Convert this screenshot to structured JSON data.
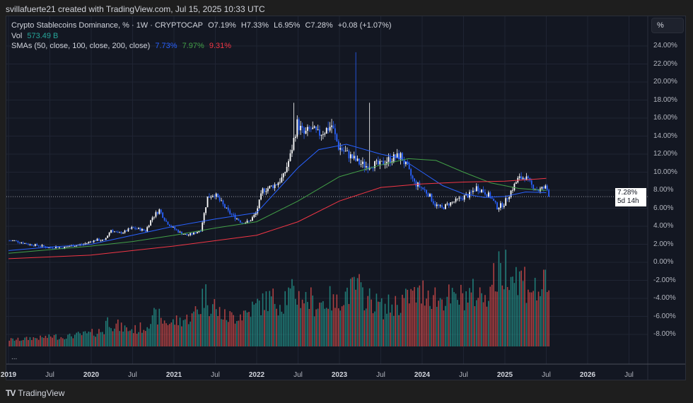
{
  "credit": "svillafuerte21 created with TradingView.com, Jul 15, 2025 10:33 UTC",
  "legend": {
    "title": "Crypto Stablecoins Dominance, % · 1W · CRYPTOCAP",
    "open": "O7.19%",
    "high": "H7.33%",
    "low": "L6.95%",
    "close": "C7.28%",
    "change": "+0.08 (+1.07%)",
    "vol_label": "Vol",
    "vol_value": "573.49 B",
    "sma_label": "SMAs (50, close, 100, close, 200, close)",
    "sma50": "7.73%",
    "sma100": "7.97%",
    "sma200": "9.31%"
  },
  "unit_button": "%",
  "y_axis_labels": [
    "24.00%",
    "22.00%",
    "20.00%",
    "18.00%",
    "16.00%",
    "14.00%",
    "12.00%",
    "10.00%",
    "8.00%",
    "6.00%",
    "4.00%",
    "2.00%",
    "0.00%",
    "-2.00%",
    "-4.00%",
    "-6.00%",
    "-8.00%"
  ],
  "price_tag": {
    "price": "7.28%",
    "countdown": "5d 14h"
  },
  "x_axis_labels": [
    {
      "t": "2019",
      "year": true,
      "d": 2019
    },
    {
      "t": "Jul",
      "d": 2019.5
    },
    {
      "t": "2020",
      "year": true,
      "d": 2020
    },
    {
      "t": "Jul",
      "d": 2020.5
    },
    {
      "t": "2021",
      "year": true,
      "d": 2021
    },
    {
      "t": "Jul",
      "d": 2021.5
    },
    {
      "t": "2022",
      "year": true,
      "d": 2022
    },
    {
      "t": "Jul",
      "d": 2022.5
    },
    {
      "t": "2023",
      "year": true,
      "d": 2023
    },
    {
      "t": "Jul",
      "d": 2023.5
    },
    {
      "t": "2024",
      "year": true,
      "d": 2024
    },
    {
      "t": "Jul",
      "d": 2024.5
    },
    {
      "t": "2025",
      "year": true,
      "d": 2025
    },
    {
      "t": "Jul",
      "d": 2025.5
    },
    {
      "t": "2026",
      "year": true,
      "d": 2026
    },
    {
      "t": "Jul",
      "d": 2026.5
    }
  ],
  "more_label": "...",
  "brand": "TradingView",
  "colors": {
    "up": "#26a69a",
    "down": "#ef5350",
    "candle_up": "#ffffff",
    "candle_down": "#2962ff",
    "sma50": "#2962ff",
    "sma100": "#43a047",
    "sma200": "#f23645",
    "vol_text": "#26a69a"
  },
  "chart_data": {
    "type": "candlestick",
    "interval": "1W",
    "start_month": "2019-01",
    "monthly_close": [
      2.4,
      2.2,
      2.0,
      1.9,
      1.8,
      1.6,
      1.7,
      1.6,
      1.8,
      1.9,
      2.0,
      2.3,
      2.5,
      2.4,
      3.6,
      3.2,
      3.4,
      3.8,
      3.7,
      3.5,
      5.0,
      5.8,
      4.5,
      3.8,
      3.3,
      3.0,
      3.2,
      3.6,
      7.2,
      7.6,
      6.6,
      5.6,
      5.0,
      4.4,
      4.5,
      5.4,
      8.0,
      8.3,
      8.7,
      9.5,
      11.8,
      15.4,
      14.2,
      14.8,
      14.2,
      14.6,
      15.2,
      12.8,
      12.2,
      11.6,
      11.0,
      10.7,
      10.9,
      10.8,
      11.3,
      11.6,
      11.8,
      10.4,
      8.8,
      8.3,
      7.6,
      6.4,
      6.0,
      6.5,
      6.8,
      7.2,
      7.5,
      8.3,
      7.9,
      7.3,
      6.1,
      6.5,
      7.9,
      9.2,
      9.5,
      8.5,
      8.0,
      8.3,
      7.28
    ],
    "spike_highs": [
      {
        "month": "2022-06",
        "high": 17.7
      },
      {
        "month": "2023-03",
        "high": 23.3
      },
      {
        "month": "2023-05",
        "high": 17.7
      }
    ],
    "monthly_volume_relative": [
      8,
      8,
      9,
      10,
      10,
      11,
      12,
      11,
      12,
      13,
      14,
      15,
      16,
      18,
      30,
      25,
      22,
      20,
      20,
      22,
      30,
      35,
      30,
      28,
      30,
      32,
      35,
      45,
      60,
      50,
      40,
      35,
      35,
      38,
      40,
      45,
      50,
      55,
      55,
      52,
      60,
      62,
      58,
      55,
      50,
      52,
      55,
      50,
      60,
      65,
      70,
      60,
      55,
      50,
      45,
      48,
      50,
      55,
      60,
      60,
      65,
      60,
      55,
      58,
      55,
      58,
      60,
      62,
      60,
      65,
      80,
      88,
      95,
      85,
      80,
      72,
      65,
      70,
      60
    ],
    "sma": [
      {
        "name": "SMA 50",
        "points": [
          [
            "2019-01",
            1.3
          ],
          [
            "2019-07",
            1.7
          ],
          [
            "2020-01",
            2.0
          ],
          [
            "2020-07",
            3.0
          ],
          [
            "2021-01",
            4.0
          ],
          [
            "2021-07",
            4.8
          ],
          [
            "2022-01",
            5.5
          ],
          [
            "2022-04",
            8.0
          ],
          [
            "2022-07",
            10.5
          ],
          [
            "2022-10",
            12.5
          ],
          [
            "2023-02",
            13.1
          ],
          [
            "2023-07",
            12.0
          ],
          [
            "2023-10",
            11.5
          ],
          [
            "2024-01",
            10.0
          ],
          [
            "2024-04",
            8.5
          ],
          [
            "2024-07",
            7.6
          ],
          [
            "2024-10",
            7.2
          ],
          [
            "2025-01",
            7.3
          ],
          [
            "2025-04",
            7.8
          ],
          [
            "2025-07",
            7.73
          ]
        ]
      },
      {
        "name": "SMA 100",
        "points": [
          [
            "2019-01",
            1.0
          ],
          [
            "2020-01",
            1.8
          ],
          [
            "2020-07",
            2.3
          ],
          [
            "2021-01",
            3.0
          ],
          [
            "2021-07",
            3.8
          ],
          [
            "2022-01",
            4.5
          ],
          [
            "2022-07",
            6.8
          ],
          [
            "2023-01",
            9.5
          ],
          [
            "2023-07",
            10.8
          ],
          [
            "2023-11",
            11.5
          ],
          [
            "2024-03",
            11.3
          ],
          [
            "2024-07",
            10.0
          ],
          [
            "2024-11",
            8.8
          ],
          [
            "2025-03",
            8.2
          ],
          [
            "2025-07",
            7.97
          ]
        ]
      },
      {
        "name": "SMA 200",
        "points": [
          [
            "2019-01",
            0.4
          ],
          [
            "2020-01",
            0.8
          ],
          [
            "2021-01",
            1.8
          ],
          [
            "2022-01",
            3.0
          ],
          [
            "2022-07",
            4.5
          ],
          [
            "2023-01",
            6.8
          ],
          [
            "2023-07",
            8.3
          ],
          [
            "2024-01",
            8.7
          ],
          [
            "2024-07",
            8.9
          ],
          [
            "2025-01",
            9.0
          ],
          [
            "2025-07",
            9.31
          ]
        ]
      }
    ],
    "y_range": [
      -9,
      25.5
    ],
    "last_price": 7.28,
    "grid": true
  }
}
